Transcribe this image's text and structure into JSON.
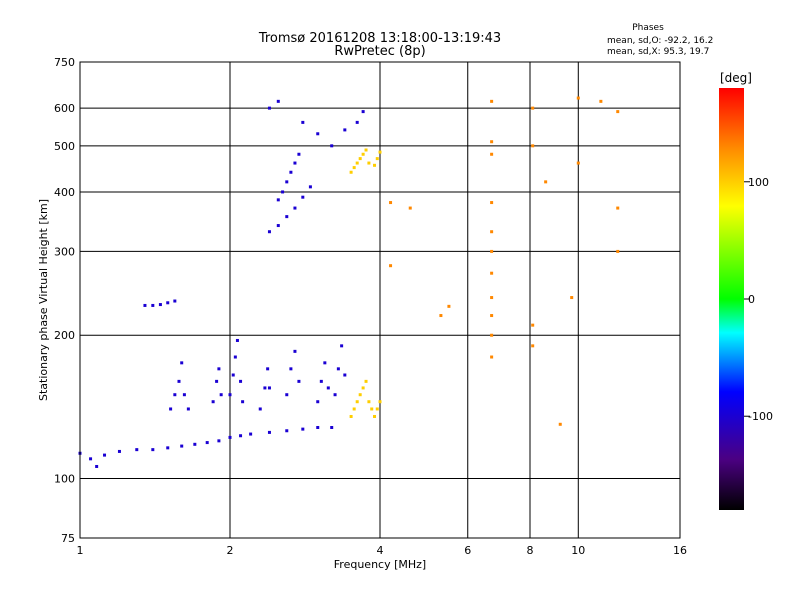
{
  "header": {
    "title": "Tromsø 20161208 13:18:00-13:19:43",
    "subtitle": "RwPretec (8p)"
  },
  "stats": {
    "heading": "Phases",
    "line_o": "mean, sd,O: -92.2, 16.2",
    "line_x": "mean, sd,X:  95.3, 19.7"
  },
  "colorbar": {
    "label": "[deg]",
    "range": [
      -180,
      180
    ],
    "ticks": [
      100,
      0,
      -100
    ],
    "tick_labels": [
      "100",
      "0",
      "-100"
    ]
  },
  "chart_data": {
    "type": "scatter",
    "xlabel": "Frequency [MHz]",
    "ylabel": "Stationary phase Virtual Height [km]",
    "x_scale": "log2",
    "y_scale": "log",
    "xlim": [
      1,
      16
    ],
    "ylim": [
      75,
      750
    ],
    "x_ticks": [
      1,
      2,
      4,
      6,
      8,
      10,
      16
    ],
    "x_tick_labels": [
      "1",
      "2",
      "4",
      "6",
      "8",
      "10",
      "16"
    ],
    "y_ticks": [
      75,
      100,
      200,
      300,
      400,
      500,
      600,
      750
    ],
    "y_tick_labels": [
      "75",
      "100",
      "200",
      "300",
      "400",
      "500",
      "600",
      "750"
    ],
    "grid": true,
    "series": [
      {
        "mode": "O",
        "phase": -100,
        "points": [
          [
            1.0,
            113
          ],
          [
            1.05,
            110
          ],
          [
            1.08,
            106
          ],
          [
            1.12,
            112
          ],
          [
            1.2,
            114
          ],
          [
            1.3,
            115
          ],
          [
            1.4,
            115
          ],
          [
            1.5,
            116
          ],
          [
            1.6,
            117
          ],
          [
            1.7,
            118
          ],
          [
            1.8,
            119
          ],
          [
            1.9,
            120
          ],
          [
            2.0,
            122
          ],
          [
            2.1,
            123
          ],
          [
            2.2,
            124
          ],
          [
            2.4,
            125
          ],
          [
            2.6,
            126
          ],
          [
            2.8,
            127
          ],
          [
            3.0,
            128
          ],
          [
            3.2,
            128
          ],
          [
            1.35,
            231
          ],
          [
            1.4,
            231
          ],
          [
            1.45,
            232
          ],
          [
            1.5,
            234
          ],
          [
            1.55,
            236
          ],
          [
            1.52,
            140
          ],
          [
            1.55,
            150
          ],
          [
            1.58,
            160
          ],
          [
            1.6,
            175
          ],
          [
            1.62,
            150
          ],
          [
            1.65,
            140
          ],
          [
            1.85,
            145
          ],
          [
            1.88,
            160
          ],
          [
            1.9,
            170
          ],
          [
            1.92,
            150
          ],
          [
            2.0,
            150
          ],
          [
            2.03,
            165
          ],
          [
            2.05,
            180
          ],
          [
            2.07,
            195
          ],
          [
            2.1,
            160
          ],
          [
            2.12,
            145
          ],
          [
            2.3,
            140
          ],
          [
            2.35,
            155
          ],
          [
            2.38,
            170
          ],
          [
            2.4,
            155
          ],
          [
            2.6,
            150
          ],
          [
            2.65,
            170
          ],
          [
            2.7,
            185
          ],
          [
            2.75,
            160
          ],
          [
            3.0,
            145
          ],
          [
            3.05,
            160
          ],
          [
            3.1,
            175
          ],
          [
            3.15,
            155
          ],
          [
            3.25,
            150
          ],
          [
            3.3,
            170
          ],
          [
            3.35,
            190
          ],
          [
            3.4,
            165
          ],
          [
            2.4,
            330
          ],
          [
            2.5,
            340
          ],
          [
            2.6,
            355
          ],
          [
            2.7,
            370
          ],
          [
            2.8,
            390
          ],
          [
            2.9,
            410
          ],
          [
            2.5,
            385
          ],
          [
            2.55,
            400
          ],
          [
            2.6,
            420
          ],
          [
            2.65,
            440
          ],
          [
            2.7,
            460
          ],
          [
            2.75,
            480
          ],
          [
            2.4,
            600
          ],
          [
            2.5,
            620
          ],
          [
            2.8,
            560
          ],
          [
            3.0,
            530
          ],
          [
            3.2,
            500
          ],
          [
            3.4,
            540
          ],
          [
            3.6,
            560
          ],
          [
            3.7,
            590
          ]
        ]
      },
      {
        "mode": "X",
        "phase": 100,
        "points": [
          [
            3.5,
            135
          ],
          [
            3.55,
            140
          ],
          [
            3.6,
            145
          ],
          [
            3.65,
            150
          ],
          [
            3.7,
            155
          ],
          [
            3.75,
            160
          ],
          [
            3.8,
            145
          ],
          [
            3.85,
            140
          ],
          [
            3.9,
            135
          ],
          [
            3.95,
            140
          ],
          [
            4.0,
            145
          ],
          [
            3.5,
            440
          ],
          [
            3.55,
            450
          ],
          [
            3.6,
            460
          ],
          [
            3.65,
            470
          ],
          [
            3.7,
            480
          ],
          [
            3.75,
            490
          ],
          [
            3.8,
            460
          ],
          [
            3.9,
            455
          ],
          [
            3.95,
            470
          ],
          [
            4.0,
            485
          ]
        ]
      },
      {
        "mode": "scattered",
        "phase": null,
        "points": [
          [
            6.7,
            620
          ],
          [
            6.7,
            510
          ],
          [
            6.7,
            480
          ],
          [
            6.7,
            380
          ],
          [
            6.7,
            330
          ],
          [
            6.7,
            300
          ],
          [
            6.7,
            270
          ],
          [
            6.7,
            240
          ],
          [
            6.7,
            220
          ],
          [
            6.7,
            200
          ],
          [
            6.7,
            180
          ],
          [
            8.1,
            600
          ],
          [
            8.1,
            500
          ],
          [
            8.1,
            210
          ],
          [
            8.1,
            190
          ],
          [
            10.0,
            630
          ],
          [
            10.0,
            460
          ],
          [
            11.1,
            620
          ],
          [
            12.0,
            590
          ],
          [
            12.0,
            370
          ],
          [
            12.0,
            300
          ],
          [
            9.7,
            240
          ],
          [
            9.2,
            130
          ],
          [
            8.6,
            420
          ],
          [
            5.3,
            220
          ],
          [
            5.5,
            230
          ],
          [
            4.2,
            380
          ],
          [
            4.2,
            280
          ],
          [
            4.6,
            370
          ]
        ]
      }
    ]
  }
}
